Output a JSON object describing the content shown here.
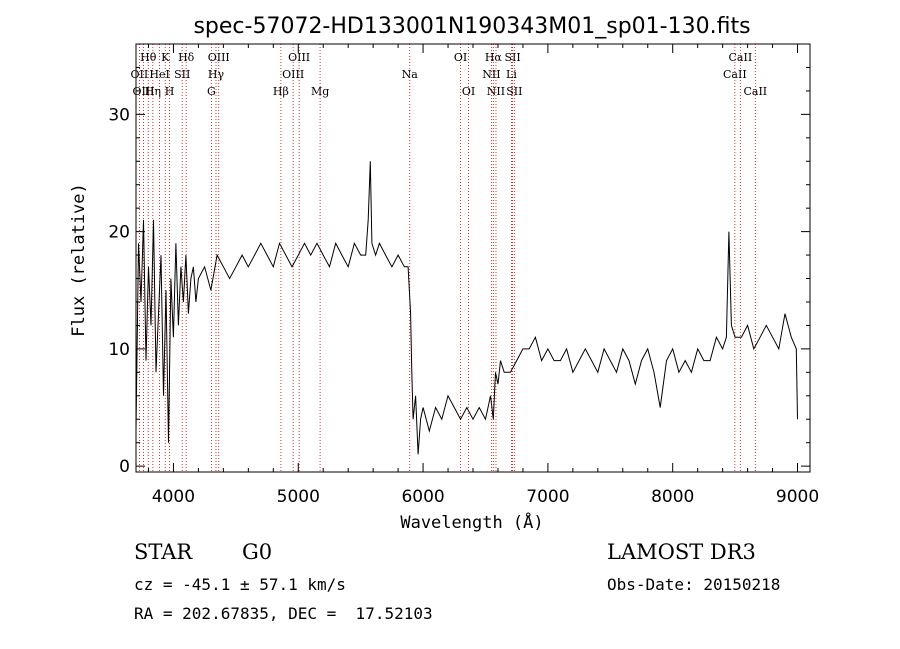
{
  "chart_data": {
    "type": "line",
    "title": "spec-57072-HD133001N190343M01_sp01-130.fits",
    "xlabel": "Wavelength (Å)",
    "ylabel": "Flux (relative)",
    "xlim": [
      3700,
      9100
    ],
    "ylim": [
      -0.5,
      36
    ],
    "xticks": [
      4000,
      5000,
      6000,
      7000,
      8000,
      9000
    ],
    "yticks": [
      0,
      10,
      20,
      30
    ],
    "grid": false,
    "line_color": "#000000",
    "marker_color": "#cc0000",
    "spectral_lines": [
      {
        "label": "Hθ",
        "wavelength": 3798,
        "row": 0
      },
      {
        "label": "OII",
        "wavelength": 3727,
        "row": 1
      },
      {
        "label": "OIII",
        "wavelength": 3760,
        "row": 2
      },
      {
        "label": "HeI",
        "wavelength": 3889,
        "row": 1
      },
      {
        "label": "Hη",
        "wavelength": 3835,
        "row": 2
      },
      {
        "label": "K",
        "wavelength": 3934,
        "row": 0
      },
      {
        "label": "H",
        "wavelength": 3969,
        "row": 2
      },
      {
        "label": "SII",
        "wavelength": 4070,
        "row": 1
      },
      {
        "label": "Hδ",
        "wavelength": 4102,
        "row": 0
      },
      {
        "label": "OIII",
        "wavelength": 4363,
        "row": 0
      },
      {
        "label": "Hγ",
        "wavelength": 4341,
        "row": 1
      },
      {
        "label": "G",
        "wavelength": 4304,
        "row": 2
      },
      {
        "label": "OIII",
        "wavelength": 5007,
        "row": 0
      },
      {
        "label": "OIII",
        "wavelength": 4959,
        "row": 1
      },
      {
        "label": "Hβ",
        "wavelength": 4861,
        "row": 2
      },
      {
        "label": "Mg",
        "wavelength": 5175,
        "row": 2
      },
      {
        "label": "Na",
        "wavelength": 5893,
        "row": 1
      },
      {
        "label": "OI",
        "wavelength": 6300,
        "row": 0
      },
      {
        "label": "OI",
        "wavelength": 6364,
        "row": 2
      },
      {
        "label": "Hα",
        "wavelength": 6563,
        "row": 0
      },
      {
        "label": "NII",
        "wavelength": 6548,
        "row": 1
      },
      {
        "label": "NII",
        "wavelength": 6584,
        "row": 2
      },
      {
        "label": "SII",
        "wavelength": 6717,
        "row": 0
      },
      {
        "label": "Li",
        "wavelength": 6708,
        "row": 1
      },
      {
        "label": "SII",
        "wavelength": 6731,
        "row": 2
      },
      {
        "label": "CaII",
        "wavelength": 8542,
        "row": 0
      },
      {
        "label": "CaII",
        "wavelength": 8498,
        "row": 1
      },
      {
        "label": "CaII",
        "wavelength": 8662,
        "row": 2
      }
    ],
    "series": [
      {
        "x": [
          3700,
          3720,
          3740,
          3760,
          3780,
          3800,
          3820,
          3840,
          3860,
          3880,
          3900,
          3920,
          3940,
          3960,
          3980,
          4000,
          4020,
          4040,
          4060,
          4080,
          4100,
          4120,
          4140,
          4160,
          4180,
          4200,
          4250,
          4300,
          4350,
          4400,
          4450,
          4500,
          4550,
          4600,
          4650,
          4700,
          4750,
          4800,
          4850,
          4900,
          4950,
          5000,
          5050,
          5100,
          5150,
          5200,
          5250,
          5300,
          5350,
          5400,
          5450,
          5500,
          5540,
          5560,
          5577,
          5590,
          5620,
          5650,
          5700,
          5750,
          5800,
          5850,
          5880,
          5900,
          5910,
          5920,
          5940,
          5960,
          5980,
          6000,
          6050,
          6100,
          6150,
          6200,
          6250,
          6300,
          6350,
          6400,
          6450,
          6500,
          6540,
          6563,
          6580,
          6600,
          6620,
          6650,
          6700,
          6750,
          6800,
          6850,
          6900,
          6950,
          7000,
          7050,
          7100,
          7150,
          7200,
          7250,
          7300,
          7350,
          7400,
          7450,
          7500,
          7550,
          7600,
          7650,
          7700,
          7750,
          7800,
          7850,
          7900,
          7950,
          8000,
          8050,
          8100,
          8150,
          8200,
          8250,
          8300,
          8350,
          8400,
          8430,
          8450,
          8470,
          8500,
          8550,
          8600,
          8650,
          8700,
          8750,
          8800,
          8850,
          8900,
          8950,
          8990,
          9000
        ],
        "values": [
          3,
          19,
          14,
          21,
          9,
          17,
          12,
          21,
          8,
          13,
          18,
          6,
          15,
          2,
          16,
          11,
          19,
          12,
          17,
          14,
          18,
          13,
          16,
          17,
          14,
          16,
          17,
          15,
          18,
          17,
          16,
          17,
          18,
          17,
          18,
          19,
          18,
          17,
          19,
          18,
          17,
          18,
          19,
          18,
          19,
          18,
          17,
          19,
          18,
          17,
          19,
          18,
          18,
          21,
          26,
          19,
          18,
          19,
          18,
          17,
          18,
          17,
          17,
          13,
          8,
          4,
          6,
          1,
          4,
          5,
          3,
          5,
          4,
          6,
          5,
          4,
          5,
          4,
          5,
          4,
          6,
          4,
          8,
          7,
          9,
          8,
          8,
          9,
          10,
          10,
          11,
          9,
          10,
          9,
          9,
          10,
          8,
          9,
          10,
          9,
          8,
          10,
          9,
          8,
          10,
          9,
          7,
          9,
          10,
          8,
          5,
          9,
          10,
          8,
          9,
          8,
          10,
          9,
          9,
          11,
          10,
          11,
          20,
          12,
          11,
          11,
          12,
          10,
          11,
          12,
          11,
          10,
          13,
          11,
          10,
          4
        ]
      }
    ]
  },
  "info": {
    "object_class": "STAR",
    "subclass": "G0",
    "survey": "LAMOST DR3",
    "redshift": "cz = -45.1 ± 57.1 km/s",
    "obs_date": "Obs-Date: 20150218",
    "coords": "RA = 202.67835, DEC =  17.52103"
  }
}
